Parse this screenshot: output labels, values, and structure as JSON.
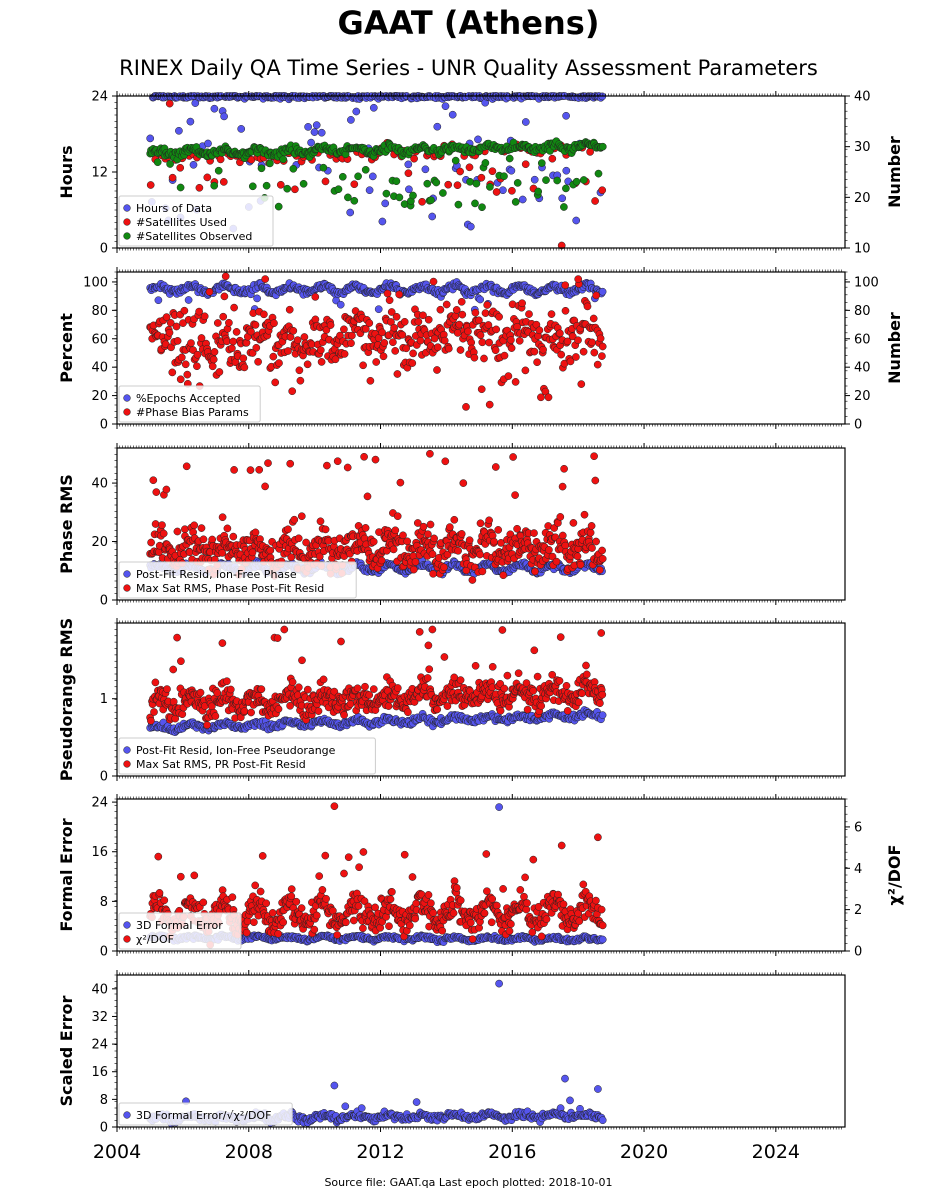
{
  "title": "GAAT (Athens)",
  "subtitle": "RINEX Daily QA Time Series - UNR Quality Assessment Parameters",
  "footer": "Source file: GAAT.qa Last epoch plotted: 2018-10-01",
  "colors": {
    "blue": "#5555ee",
    "red": "#ee1111",
    "green": "#118811",
    "edge": "#222222"
  },
  "chart_data": [
    {
      "type": "scatter",
      "ylabel": "Hours",
      "ylabel_right": "Number",
      "ylim": [
        0,
        24
      ],
      "yticks": [
        "0",
        "12",
        "24"
      ],
      "ylim_right": [
        10,
        40
      ],
      "yticks_right": [
        "10",
        "20",
        "30",
        "40"
      ],
      "xlim": [
        2004,
        2026.1
      ],
      "xticks": [
        "2004",
        "2008",
        "2012",
        "2016",
        "2020",
        "2024"
      ],
      "legend": {
        "location": "lower-left",
        "entries": [
          {
            "label": "Hours of Data",
            "color": "#5555ee"
          },
          {
            "label": "#Satellites Used",
            "color": "#ee1111"
          },
          {
            "label": "#Satellites Observed",
            "color": "#118811"
          }
        ]
      },
      "series": [
        {
          "name": "Hours of Data",
          "axis": "left",
          "color": "#5555ee",
          "spec": {
            "t0": 2005.0,
            "t1": 2018.75,
            "n": 420,
            "base": 23.9,
            "trend": 0,
            "amp": 0,
            "noise": 0.15,
            "out_p": 0.18,
            "out_lo": 3,
            "out_hi": 23,
            "clip": [
              0,
              24
            ],
            "seed": 11
          }
        },
        {
          "name": "#Satellites Used",
          "axis": "right",
          "color": "#ee1111",
          "spec": {
            "t0": 2005.0,
            "t1": 2018.75,
            "n": 130,
            "base": 27.5,
            "trend": 0.15,
            "amp": 0.5,
            "noise": 0.6,
            "out_p": 0.3,
            "out_lo": 19,
            "out_hi": 28,
            "clip": [
              10,
              40
            ],
            "seed": 12
          }
        },
        {
          "name": "#Satellites Observed",
          "axis": "right",
          "color": "#118811",
          "spec": {
            "t0": 2005.0,
            "t1": 2018.75,
            "n": 460,
            "base": 28.7,
            "trend": 0.1,
            "amp": 0.5,
            "noise": 0.35,
            "out_p": 0.12,
            "out_lo": 18,
            "out_hi": 28,
            "clip": [
              10,
              40
            ],
            "seed": 13
          }
        }
      ]
    },
    {
      "type": "scatter",
      "ylabel": "Percent",
      "ylabel_right": "Number",
      "ylim": [
        0,
        107
      ],
      "yticks": [
        "0",
        "20",
        "40",
        "60",
        "80",
        "100"
      ],
      "ylim_right": [
        0,
        107
      ],
      "yticks_right": [
        "0",
        "20",
        "40",
        "60",
        "80",
        "100"
      ],
      "xlim": [
        2004,
        2026.1
      ],
      "xticks": [
        "2004",
        "2008",
        "2012",
        "2016",
        "2020",
        "2024"
      ],
      "legend": {
        "location": "lower-left",
        "entries": [
          {
            "label": "%Epochs Accepted",
            "color": "#5555ee"
          },
          {
            "label": "#Phase Bias Params",
            "color": "#ee1111"
          }
        ]
      },
      "series": [
        {
          "name": "%Epochs Accepted",
          "axis": "left",
          "color": "#5555ee",
          "spec": {
            "t0": 2005.0,
            "t1": 2018.75,
            "n": 460,
            "base": 95,
            "trend": 0,
            "amp": 2.5,
            "noise": 1.2,
            "out_p": 0.02,
            "out_lo": 80,
            "out_hi": 92,
            "clip": [
              0,
              107
            ],
            "seed": 21
          }
        },
        {
          "name": "#Phase Bias Params",
          "axis": "right",
          "color": "#ee1111",
          "spec": {
            "t0": 2005.0,
            "t1": 2018.75,
            "n": 520,
            "base": 56,
            "trend": 0.6,
            "amp": 7,
            "noise": 10,
            "out_p": 0.06,
            "out_lo": 12,
            "out_hi": 104,
            "clip": [
              0,
              107
            ],
            "seed": 22
          }
        }
      ]
    },
    {
      "type": "scatter",
      "ylabel": "Phase RMS",
      "ylim": [
        0,
        52
      ],
      "yticks": [
        "0",
        "20",
        "40"
      ],
      "xlim": [
        2004,
        2026.1
      ],
      "xticks": [
        "2004",
        "2008",
        "2012",
        "2016",
        "2020",
        "2024"
      ],
      "legend": {
        "location": "lower-left",
        "entries": [
          {
            "label": "Post-Fit Resid, Ion-Free Phase",
            "color": "#5555ee"
          },
          {
            "label": "Max Sat RMS, Phase Post-Fit Resid",
            "color": "#ee1111"
          }
        ]
      },
      "series": [
        {
          "name": "Post-Fit Resid, Ion-Free Phase",
          "axis": "left",
          "color": "#5555ee",
          "spec": {
            "t0": 2005.0,
            "t1": 2018.75,
            "n": 420,
            "base": 10.8,
            "trend": 0.02,
            "amp": 1.3,
            "noise": 0.5,
            "out_p": 0,
            "out_lo": 8,
            "out_hi": 12,
            "clip": [
              0,
              52
            ],
            "seed": 31
          }
        },
        {
          "name": "Max Sat RMS, Phase Post-Fit Resid",
          "axis": "left",
          "color": "#ee1111",
          "spec": {
            "t0": 2005.0,
            "t1": 2018.75,
            "n": 620,
            "base": 16.5,
            "trend": 0.1,
            "amp": 3,
            "noise": 3.5,
            "out_p": 0.05,
            "out_lo": 25,
            "out_hi": 50,
            "clip": [
              0,
              52
            ],
            "seed": 32
          }
        }
      ]
    },
    {
      "type": "scatter",
      "ylabel": "Pseudorange RMS",
      "ylim": [
        0,
        1.98
      ],
      "yticks": [
        "0",
        "1"
      ],
      "xlim": [
        2004,
        2026.1
      ],
      "xticks": [
        "2004",
        "2008",
        "2012",
        "2016",
        "2020",
        "2024"
      ],
      "legend": {
        "location": "lower-left",
        "entries": [
          {
            "label": "Post-Fit Resid, Ion-Free Pseudorange",
            "color": "#5555ee"
          },
          {
            "label": "Max Sat RMS, PR Post-Fit Resid",
            "color": "#ee1111"
          }
        ]
      },
      "series": [
        {
          "name": "Post-Fit Resid, Ion-Free Pseudorange",
          "axis": "left",
          "color": "#5555ee",
          "spec": {
            "t0": 2005.0,
            "t1": 2018.75,
            "n": 420,
            "base": 0.62,
            "trend": 0.012,
            "amp": 0.03,
            "noise": 0.02,
            "out_p": 0,
            "out_lo": 0.5,
            "out_hi": 0.7,
            "clip": [
              0,
              1.98
            ],
            "seed": 41
          }
        },
        {
          "name": "Max Sat RMS, PR Post-Fit Resid",
          "axis": "left",
          "color": "#ee1111",
          "spec": {
            "t0": 2005.0,
            "t1": 2018.75,
            "n": 620,
            "base": 0.93,
            "trend": 0.012,
            "amp": 0.08,
            "noise": 0.09,
            "out_p": 0.05,
            "out_lo": 1.2,
            "out_hi": 1.9,
            "clip": [
              0,
              1.98
            ],
            "seed": 42
          }
        }
      ]
    },
    {
      "type": "scatter",
      "ylabel": "Formal Error",
      "ylabel_right": "χ²/DOF",
      "ylim": [
        0,
        24.5
      ],
      "yticks": [
        "0",
        "8",
        "16",
        "24"
      ],
      "ylim_right": [
        0,
        7.35
      ],
      "yticks_right": [
        "0",
        "2",
        "4",
        "6"
      ],
      "xlim": [
        2004,
        2026.1
      ],
      "xticks": [
        "2004",
        "2008",
        "2012",
        "2016",
        "2020",
        "2024"
      ],
      "legend": {
        "location": "lower-left",
        "entries": [
          {
            "label": "3D Formal Error",
            "color": "#5555ee"
          },
          {
            "label": "χ²/DOF",
            "color": "#ee1111"
          }
        ]
      },
      "series": [
        {
          "name": "3D Formal Error",
          "axis": "left",
          "color": "#5555ee",
          "spec": {
            "t0": 2005.0,
            "t1": 2018.75,
            "n": 420,
            "base": 2.2,
            "trend": -0.02,
            "amp": 0.25,
            "noise": 0.15,
            "out_p": 0.01,
            "out_lo": 3,
            "out_hi": 6,
            "clip": [
              0,
              24.5
            ],
            "seed": 51
          }
        },
        {
          "name": "χ²/DOF",
          "axis": "right",
          "color": "#ee1111",
          "spec": {
            "t0": 2005.0,
            "t1": 2018.75,
            "n": 620,
            "base": 1.7,
            "trend": 0.02,
            "amp": 0.55,
            "noise": 0.35,
            "out_p": 0.03,
            "out_lo": 3,
            "out_hi": 5,
            "clip": [
              0,
              7.35
            ],
            "seed": 52
          }
        }
      ]
    },
    {
      "type": "scatter",
      "ylabel": "Scaled Error",
      "ylim": [
        0,
        44
      ],
      "yticks": [
        "0",
        "8",
        "16",
        "24",
        "32",
        "40"
      ],
      "xlim": [
        2004,
        2026.1
      ],
      "xticks": [
        "2004",
        "2008",
        "2012",
        "2016",
        "2020",
        "2024"
      ],
      "legend": {
        "location": "lower-left",
        "entries": [
          {
            "label": "3D Formal Error/√χ²/DOF",
            "color": "#5555ee"
          }
        ]
      },
      "series": [
        {
          "name": "3D Formal Error/√χ²/DOF",
          "axis": "left",
          "color": "#5555ee",
          "spec": {
            "t0": 2005.0,
            "t1": 2018.75,
            "n": 460,
            "base": 2.6,
            "trend": 0.05,
            "amp": 0.6,
            "noise": 0.5,
            "out_p": 0.02,
            "out_lo": 4,
            "out_hi": 8,
            "clip": [
              0,
              44
            ],
            "seed": 61
          }
        }
      ]
    }
  ],
  "special_points": [
    {
      "chart": 0,
      "series": 1,
      "x": 2005.6,
      "y": 38.5
    },
    {
      "chart": 0,
      "series": 0,
      "x": 2010.4,
      "y": 12.2
    },
    {
      "chart": 0,
      "series": 1,
      "x": 2017.5,
      "y": 10.5
    },
    {
      "chart": 1,
      "series": 1,
      "x": 2007.3,
      "y": 104
    },
    {
      "chart": 1,
      "series": 1,
      "x": 2008.5,
      "y": 102
    },
    {
      "chart": 1,
      "series": 1,
      "x": 2018.0,
      "y": 102
    },
    {
      "chart": 2,
      "series": 1,
      "x": 2010.7,
      "y": 47.5
    },
    {
      "chart": 2,
      "series": 1,
      "x": 2011.5,
      "y": 49
    },
    {
      "chart": 2,
      "series": 1,
      "x": 2013.5,
      "y": 50
    },
    {
      "chart": 2,
      "series": 1,
      "x": 2015.5,
      "y": 45.5
    },
    {
      "chart": 2,
      "series": 1,
      "x": 2005.5,
      "y": 37.8
    },
    {
      "chart": 3,
      "series": 1,
      "x": 2015.7,
      "y": 1.89
    },
    {
      "chart": 3,
      "series": 1,
      "x": 2010.8,
      "y": 1.74
    },
    {
      "chart": 3,
      "series": 1,
      "x": 2007.2,
      "y": 1.72
    },
    {
      "chart": 3,
      "series": 1,
      "x": 2018.7,
      "y": 1.85
    },
    {
      "chart": 4,
      "series": 1,
      "x": 2010.6,
      "y": 7.0
    },
    {
      "chart": 4,
      "series": 0,
      "x": 2015.6,
      "y": 23.2
    },
    {
      "chart": 4,
      "series": 1,
      "x": 2018.6,
      "y": 5.5
    },
    {
      "chart": 4,
      "series": 1,
      "x": 2017.5,
      "y": 5.1
    },
    {
      "chart": 5,
      "series": 0,
      "x": 2015.6,
      "y": 41.5
    },
    {
      "chart": 5,
      "series": 0,
      "x": 2017.6,
      "y": 14
    },
    {
      "chart": 5,
      "series": 0,
      "x": 2010.6,
      "y": 12
    },
    {
      "chart": 5,
      "series": 0,
      "x": 2018.6,
      "y": 11
    }
  ]
}
